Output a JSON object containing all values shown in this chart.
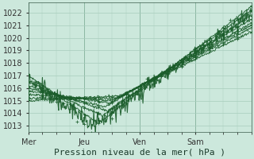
{
  "xlabel": "Pression niveau de la mer( hPa )",
  "bg_color": "#cce8dc",
  "grid_color": "#a8ccbc",
  "line_color": "#1a5c2a",
  "marker_color": "#1a5c2a",
  "ylim": [
    1012.5,
    1022.8
  ],
  "xlim": [
    0,
    96
  ],
  "yticks": [
    1013,
    1014,
    1015,
    1016,
    1017,
    1018,
    1019,
    1020,
    1021,
    1022
  ],
  "xtick_pos": [
    0,
    24,
    48,
    72
  ],
  "xtick_labels": [
    "Mer",
    "Jeu",
    "Ven",
    "Sam"
  ],
  "xlabel_fontsize": 8,
  "tick_fontsize": 7
}
